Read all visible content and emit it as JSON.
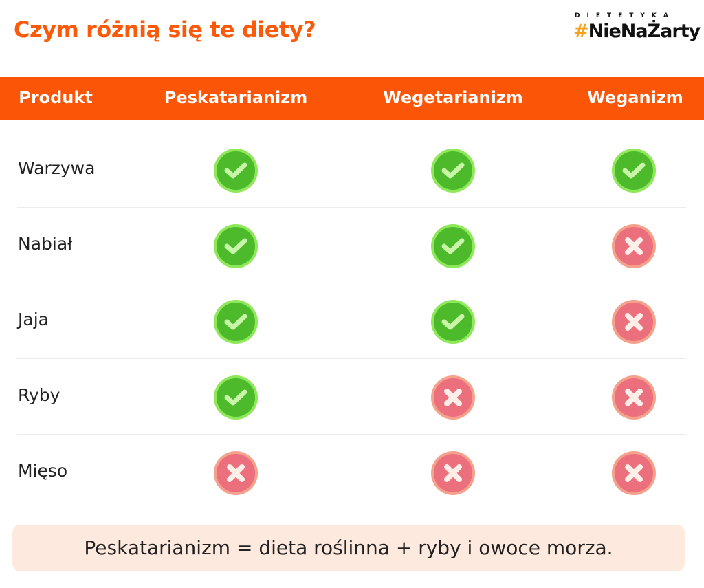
{
  "title": "Czym różnią się te diety?",
  "logo": {
    "top": "DIETETYKA",
    "hash": "#",
    "main": "NieNaŻarty"
  },
  "columns": [
    "Produkt",
    "Peskatarianizm",
    "Wegetarianizm",
    "Weganizm"
  ],
  "rows": [
    {
      "product": "Warzywa",
      "values": [
        true,
        true,
        true
      ]
    },
    {
      "product": "Nabiał",
      "values": [
        true,
        true,
        false
      ]
    },
    {
      "product": "Jaja",
      "values": [
        true,
        true,
        false
      ]
    },
    {
      "product": "Ryby",
      "values": [
        true,
        false,
        false
      ]
    },
    {
      "product": "Mięso",
      "values": [
        false,
        false,
        false
      ]
    }
  ],
  "footer": "Peskatarianizm = dieta roślinna + ryby i owoce morza.",
  "colors": {
    "accent": "#fb5607",
    "yes": "#4cba2a",
    "no": "#ec6f7d"
  }
}
